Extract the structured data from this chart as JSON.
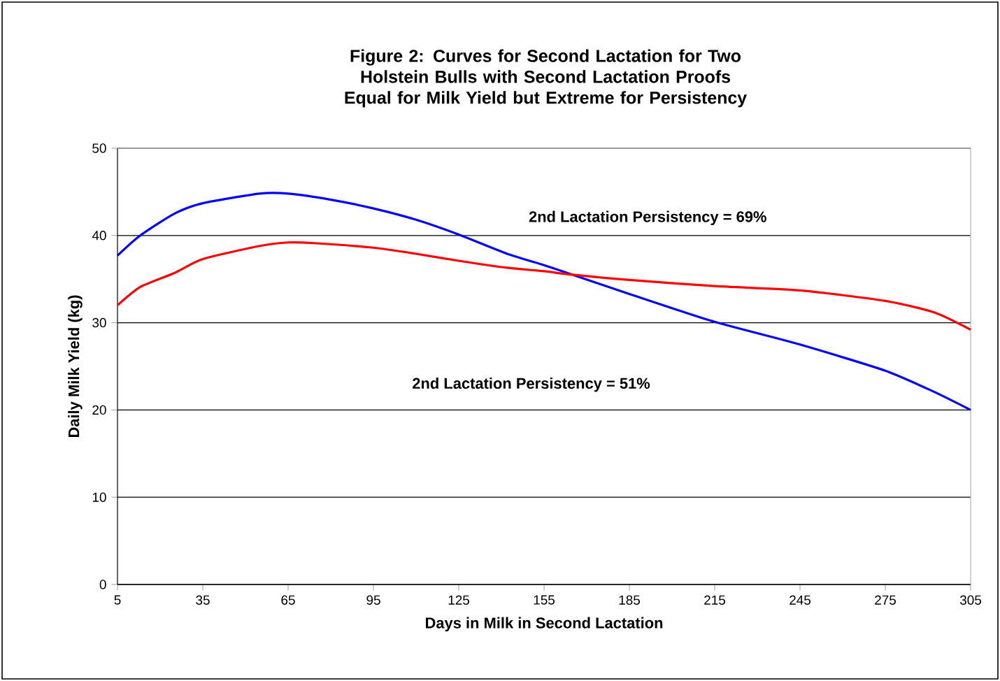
{
  "chart_data": {
    "type": "line",
    "title": "Figure 2: Curves for Second Lactation for Two Holstein Bulls with Second Lactation Proofs Equal for Milk Yield but Extreme for Persistency",
    "xlabel": "Days in Milk in Second Lactation",
    "ylabel": "Daily Milk Yield (kg)",
    "series": [
      {
        "color": "#0000ff",
        "x": [
          5,
          13,
          25,
          35,
          55,
          65,
          80,
          95,
          110,
          125,
          142,
          155,
          165,
          185,
          215,
          245,
          275,
          292,
          305
        ],
        "values": [
          37.7,
          40.0,
          42.5,
          43.7,
          44.8,
          44.8,
          44.1,
          43.1,
          41.8,
          40.1,
          37.9,
          36.6,
          35.5,
          33.3,
          30.1,
          27.5,
          24.5,
          22.1,
          20.0
        ]
      },
      {
        "color": "#ff0000",
        "x": [
          5,
          13,
          25,
          35,
          55,
          65,
          75,
          95,
          110,
          125,
          142,
          155,
          165,
          185,
          215,
          245,
          275,
          292,
          305
        ],
        "values": [
          32.0,
          34.1,
          35.7,
          37.3,
          38.8,
          39.2,
          39.1,
          38.6,
          37.9,
          37.1,
          36.3,
          35.9,
          35.5,
          34.9,
          34.2,
          33.7,
          32.5,
          31.2,
          29.2
        ]
      }
    ],
    "annotations": [
      "2nd Lactation Persistency = 69%",
      "2nd Lactation Persistency = 51%"
    ],
    "xlim": [
      5,
      305
    ],
    "xticks": [
      5,
      35,
      65,
      95,
      125,
      155,
      185,
      215,
      245,
      275,
      305
    ],
    "ylim": [
      0,
      50
    ],
    "yticks": [
      0,
      10,
      20,
      30,
      40,
      50
    ],
    "grid": "y",
    "line_style": "solid",
    "marker": "none"
  }
}
